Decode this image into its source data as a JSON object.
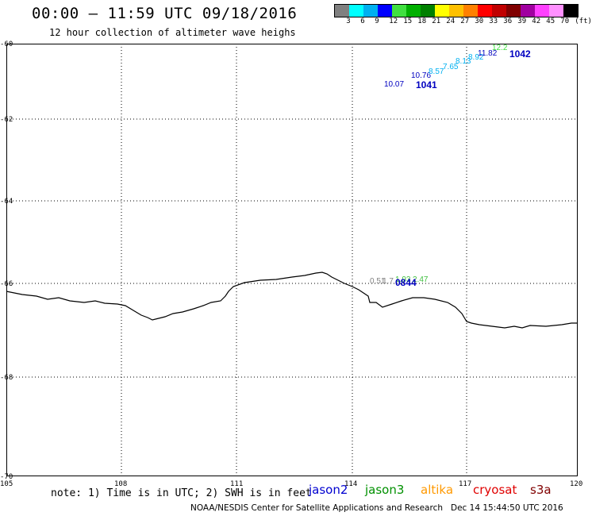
{
  "title": "00:00 – 11:59 UTC 09/18/2016",
  "subtitle": "12 hour collection of altimeter wave heighs",
  "legend": {
    "colors": [
      "#808080",
      "#00ffff",
      "#00b0f0",
      "#0000ff",
      "#40e040",
      "#00b000",
      "#008000",
      "#ffff00",
      "#ffc000",
      "#ff8000",
      "#ff0000",
      "#c00000",
      "#800000",
      "#a000a0",
      "#ff40ff",
      "#ff90ff",
      "#000000"
    ],
    "labels": [
      "3",
      "6",
      "9",
      "12",
      "15",
      "18",
      "21",
      "24",
      "27",
      "30",
      "33",
      "36",
      "39",
      "42",
      "45",
      "70",
      "(ft)"
    ]
  },
  "axes": {
    "lat_labels": [
      "-60",
      "-62",
      "-64",
      "-66",
      "-68",
      "-70"
    ],
    "lon_labels": [
      "105",
      "108",
      "111",
      "114",
      "117",
      "120"
    ]
  },
  "tracks": [
    {
      "satellite": "jason2",
      "time": "1041",
      "color": "#0000c0"
    },
    {
      "satellite": "jason2",
      "time": "1042",
      "color": "#0000c0"
    },
    {
      "satellite": "jason2",
      "time": "0844",
      "color": "#0000c0"
    }
  ],
  "swh_values": [
    {
      "value": "10.07",
      "color": "#0000c0"
    },
    {
      "value": "10.76",
      "color": "#0000c0"
    },
    {
      "value": "8.57",
      "color": "#00b0f0"
    },
    {
      "value": "7.65",
      "color": "#00b0f0"
    },
    {
      "value": "8.13",
      "color": "#00b0f0"
    },
    {
      "value": "8.92",
      "color": "#00b0f0"
    },
    {
      "value": "11.82",
      "color": "#0000c0"
    },
    {
      "value": "12.2",
      "color": "#40e040"
    },
    {
      "value": "0.51",
      "color": "#808080"
    },
    {
      "value": "1.7",
      "color": "#808080"
    },
    {
      "value": "1.93",
      "color": "#40c040"
    },
    {
      "value": "2.47",
      "color": "#40c040"
    }
  ],
  "note": "note: 1) Time is in UTC; 2) SWH is in feet",
  "satellites": [
    {
      "name": "jason2",
      "color": "#0000d0"
    },
    {
      "name": "jason3",
      "color": "#009000"
    },
    {
      "name": "altika",
      "color": "#ff9900"
    },
    {
      "name": "cryosat",
      "color": "#e00000"
    },
    {
      "name": "s3a",
      "color": "#800000"
    }
  ],
  "credit": "NOAA/NESDIS Center for Satellite Applications and Research   Dec 14 15:44:50 UTC 2016"
}
